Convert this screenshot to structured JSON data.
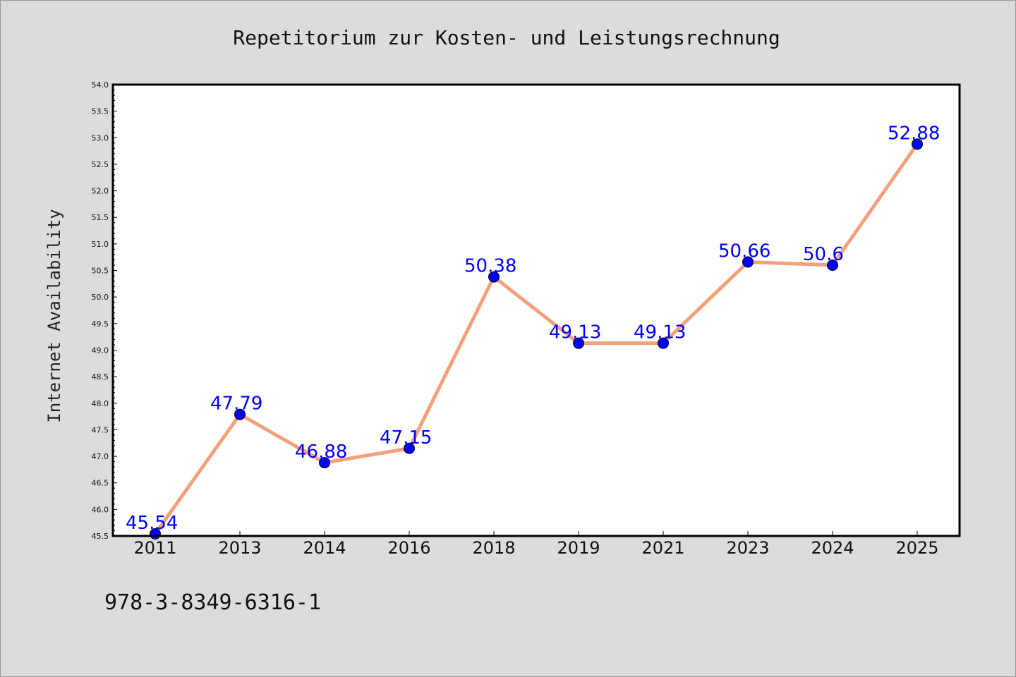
{
  "chart_data": {
    "type": "line",
    "title": "Repetitorium zur Kosten- und Leistungsrechnung",
    "ylabel": "Internet Availability",
    "xlabel": "",
    "categories": [
      "2011",
      "2013",
      "2014",
      "2016",
      "2018",
      "2019",
      "2021",
      "2023",
      "2024",
      "2025"
    ],
    "series": [
      {
        "values": [
          45.54,
          47.79,
          46.88,
          47.15,
          50.38,
          49.13,
          49.13,
          50.66,
          50.6,
          52.88
        ],
        "labels": [
          "45.54",
          "47.79",
          "46.88",
          "47.15",
          "50.38",
          "49.13",
          "49.13",
          "50.66",
          "50.6",
          "52.88"
        ],
        "line_color": "#f4a07c",
        "marker_color": "#0000ff"
      }
    ],
    "ylim": [
      45.5,
      54.0
    ],
    "yticks": [
      "45.5",
      "46.0",
      "46.5",
      "47.0",
      "47.5",
      "48.0",
      "48.5",
      "49.0",
      "49.5",
      "50.0",
      "50.5",
      "51.0",
      "51.5",
      "52.0",
      "52.5",
      "53.0",
      "53.5",
      "54.0"
    ],
    "grid": false,
    "legend": "none"
  },
  "footer": {
    "isbn": "978-3-8349-6316-1"
  },
  "colors": {
    "background": "#dcdcdc",
    "plot_background": "#ffffff",
    "line": "#f4a07c",
    "marker": "#0000ff",
    "data_label": "#0000ff"
  }
}
